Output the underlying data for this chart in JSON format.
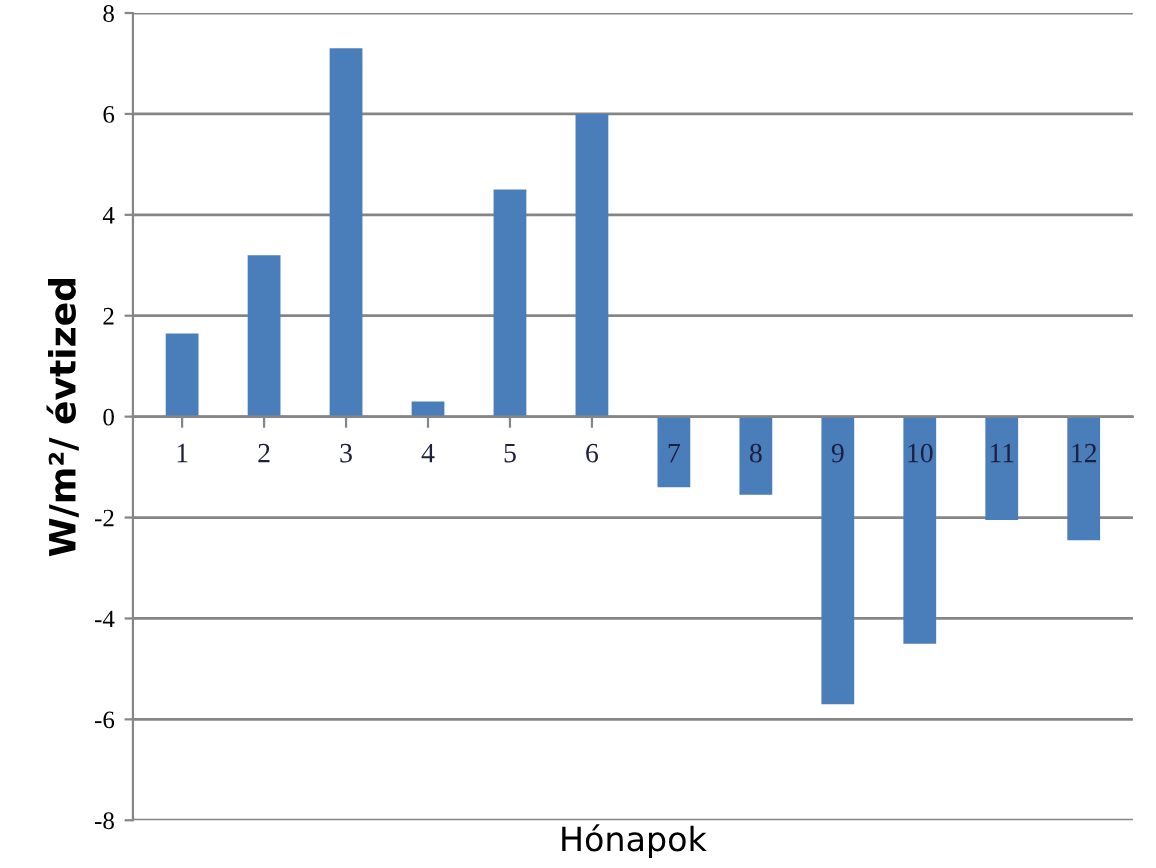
{
  "chart_data": {
    "type": "bar",
    "xlabel": "Hónapok",
    "ylabel": "W/m²/ évtized",
    "categories": [
      "1",
      "2",
      "3",
      "4",
      "5",
      "6",
      "7",
      "8",
      "9",
      "10",
      "11",
      "12"
    ],
    "values": [
      1.65,
      3.2,
      7.3,
      0.3,
      4.5,
      6.0,
      -1.4,
      -1.55,
      -5.7,
      -4.5,
      -2.05,
      -2.45
    ],
    "color": "#4a7ebb",
    "ylim": [
      -8,
      8
    ],
    "yticks": [
      -8,
      -6,
      -4,
      -2,
      0,
      2,
      4,
      6,
      8
    ],
    "grid": "y",
    "legend": false
  }
}
